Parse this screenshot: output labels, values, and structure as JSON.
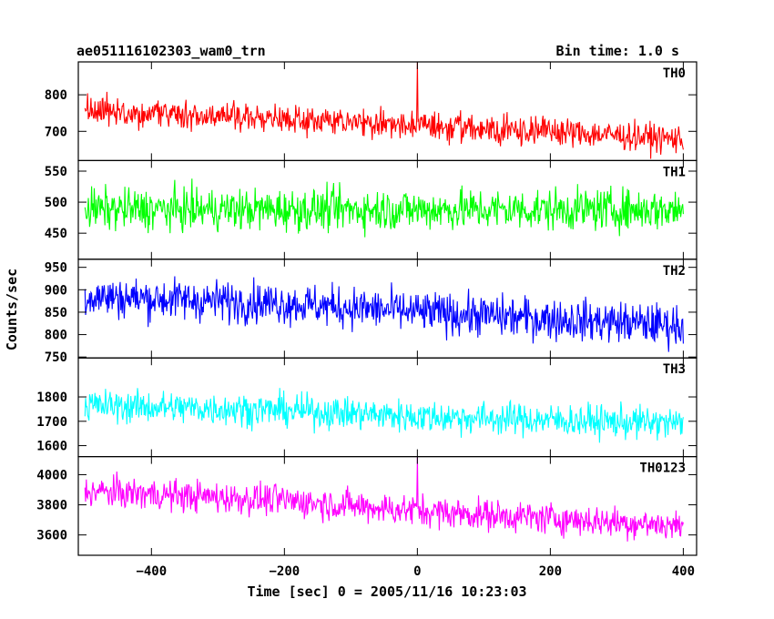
{
  "chart_data": {
    "type": "line",
    "title": "ae051116102303_wam0_trn",
    "bin_time_label": "Bin time: 1.0 s",
    "xlabel": "Time [sec] 0 = 2005/11/16 10:23:03",
    "ylabel": "Counts/sec",
    "xlim": [
      -510,
      420
    ],
    "x_ticks": [
      -400,
      -200,
      0,
      200,
      400
    ],
    "x_tick_labels": [
      "−400",
      "−200",
      "0",
      "200",
      "400"
    ],
    "x_range": [
      -500,
      400
    ],
    "grid": false,
    "panels": [
      {
        "name": "TH0",
        "color": "#ff0000",
        "ylim": [
          620,
          890
        ],
        "y_ticks": [
          700,
          800
        ],
        "y_tick_labels": [
          "700",
          "800"
        ],
        "trend": [
          {
            "x": -500,
            "y": 755
          },
          {
            "x": -250,
            "y": 740
          },
          {
            "x": 0,
            "y": 715
          },
          {
            "x": 200,
            "y": 700
          },
          {
            "x": 400,
            "y": 678
          }
        ],
        "noise_amplitude": 28,
        "spikes": [
          {
            "x": 0,
            "y": 888
          }
        ]
      },
      {
        "name": "TH1",
        "color": "#00ff00",
        "ylim": [
          408,
          567
        ],
        "y_ticks": [
          450,
          500,
          550
        ],
        "y_tick_labels": [
          "450",
          "500",
          "550"
        ],
        "trend": [
          {
            "x": -500,
            "y": 488
          },
          {
            "x": 0,
            "y": 488
          },
          {
            "x": 400,
            "y": 488
          }
        ],
        "noise_amplitude": 24,
        "spikes": []
      },
      {
        "name": "TH2",
        "color": "#0000ff",
        "ylim": [
          748,
          968
        ],
        "y_ticks": [
          750,
          800,
          850,
          900,
          950
        ],
        "y_tick_labels": [
          "750",
          "800",
          "850",
          "900",
          "950"
        ],
        "trend": [
          {
            "x": -500,
            "y": 885
          },
          {
            "x": -200,
            "y": 870
          },
          {
            "x": 0,
            "y": 850
          },
          {
            "x": 200,
            "y": 835
          },
          {
            "x": 400,
            "y": 820
          }
        ],
        "noise_amplitude": 33,
        "spikes": []
      },
      {
        "name": "TH3",
        "color": "#00ffff",
        "ylim": [
          1555,
          1960
        ],
        "y_ticks": [
          1600,
          1700,
          1800
        ],
        "y_tick_labels": [
          "1600",
          "1700",
          "1800"
        ],
        "trend": [
          {
            "x": -500,
            "y": 1765
          },
          {
            "x": -200,
            "y": 1745
          },
          {
            "x": 0,
            "y": 1720
          },
          {
            "x": 200,
            "y": 1705
          },
          {
            "x": 400,
            "y": 1690
          }
        ],
        "noise_amplitude": 48,
        "spikes": []
      },
      {
        "name": "TH0123",
        "color": "#ff00ff",
        "ylim": [
          3465,
          4120
        ],
        "y_ticks": [
          3600,
          3800,
          4000
        ],
        "y_tick_labels": [
          "3600",
          "3800",
          "4000"
        ],
        "trend": [
          {
            "x": -500,
            "y": 3890
          },
          {
            "x": -200,
            "y": 3830
          },
          {
            "x": 0,
            "y": 3760
          },
          {
            "x": 200,
            "y": 3710
          },
          {
            "x": 400,
            "y": 3660
          }
        ],
        "noise_amplitude": 75,
        "spikes": [
          {
            "x": 0,
            "y": 4115
          }
        ]
      }
    ]
  }
}
